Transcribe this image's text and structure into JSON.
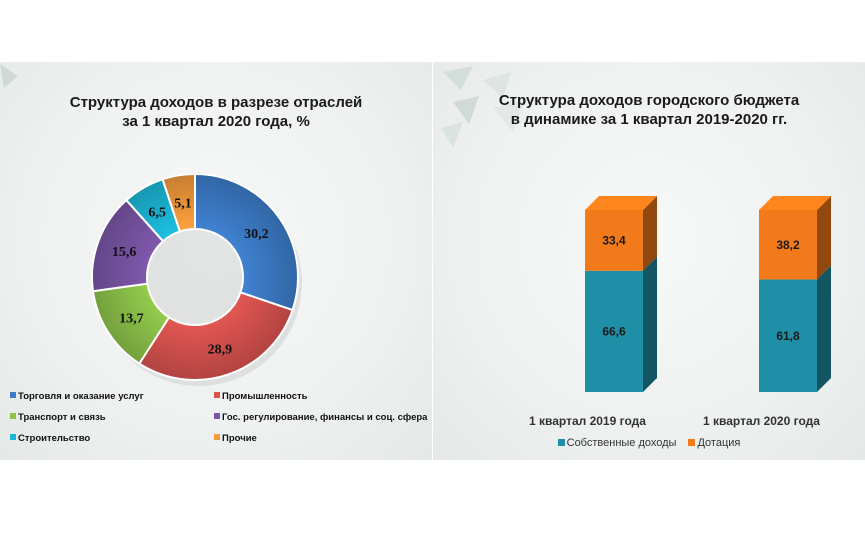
{
  "left_chart": {
    "title_line1": "Структура доходов в разрезе отраслей",
    "title_line2": "за 1 квартал 2020 года, %",
    "legend": [
      {
        "label": "Торговля и оказание услуг",
        "color": "#3d7cc9"
      },
      {
        "label": "Промышленность",
        "color": "#d9534f"
      },
      {
        "label": "Транспорт и связь",
        "color": "#8dc34a"
      },
      {
        "label": "Гос. регулирование, финансы и соц. сфера",
        "color": "#7a55a6"
      },
      {
        "label": "Строительство",
        "color": "#1cb8d8"
      },
      {
        "label": "Прочие",
        "color": "#f39a3c"
      }
    ]
  },
  "right_chart": {
    "title_line1": "Структура доходов городского бюджета",
    "title_line2": "в динамике за 1 квартал 2019-2020 гг.",
    "legend": [
      {
        "label": "Собственные доходы",
        "color": "#1e8fa6"
      },
      {
        "label": "Дотация",
        "color": "#f27a1a"
      }
    ]
  },
  "chart_data": [
    {
      "type": "pie",
      "title": "Структура доходов в разрезе отраслей за 1 квартал 2020 года, %",
      "donut": true,
      "categories": [
        "Торговля и оказание услуг",
        "Промышленность",
        "Транспорт и связь",
        "Гос. регулирование, финансы и соц. сфера",
        "Строительство",
        "Прочие"
      ],
      "values": [
        30.2,
        28.9,
        13.7,
        15.6,
        6.5,
        5.1
      ],
      "value_labels": [
        "30,2",
        "28,9",
        "13,7",
        "15,6",
        "6,5",
        "5,1"
      ],
      "colors": [
        "#3d7cc9",
        "#d9534f",
        "#8dc34a",
        "#7a55a6",
        "#1cb8d8",
        "#f39a3c"
      ],
      "legend_position": "bottom"
    },
    {
      "type": "bar",
      "stacked": true,
      "title": "Структура доходов городского бюджета в динамике за 1 квартал 2019-2020 гг.",
      "categories": [
        "1 квартал 2019 года",
        "1 квартал 2020 года"
      ],
      "series": [
        {
          "name": "Собственные доходы",
          "values": [
            66.6,
            61.8
          ],
          "labels": [
            "66,6",
            "61,8"
          ],
          "color": "#1e8fa6"
        },
        {
          "name": "Дотация",
          "values": [
            33.4,
            38.2
          ],
          "labels": [
            "33,4",
            "38,2"
          ],
          "color": "#f27a1a"
        }
      ],
      "ylim": [
        0,
        100
      ],
      "legend_position": "bottom"
    }
  ]
}
